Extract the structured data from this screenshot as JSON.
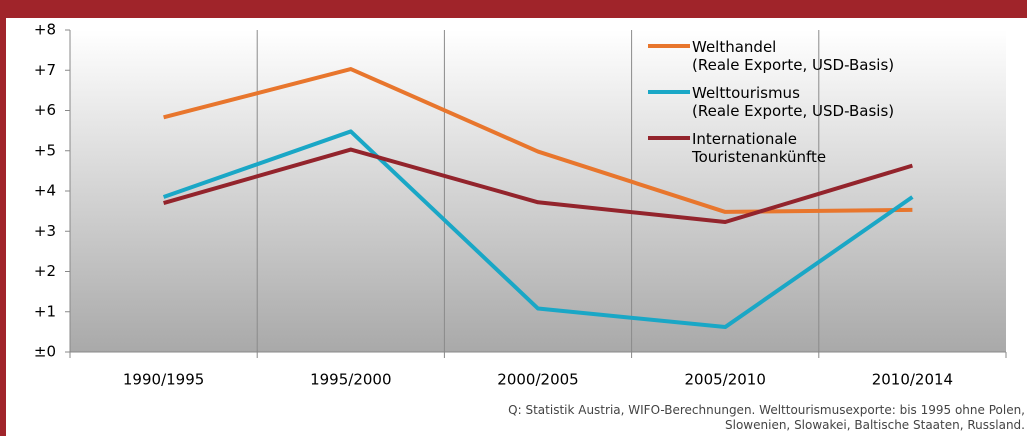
{
  "chart_data": {
    "type": "line",
    "categories": [
      "1990/1995",
      "1995/2000",
      "2000/2005",
      "2005/2010",
      "2010/2014"
    ],
    "series": [
      {
        "name": "Welthandel\n(Reale Exporte, USD-Basis)",
        "color": "#e8762d",
        "values": [
          5.83,
          7.03,
          4.98,
          3.48,
          3.53
        ]
      },
      {
        "name": "Welttourismus\n(Reale Exporte, USD-Basis)",
        "color": "#1aa7c6",
        "values": [
          3.85,
          5.48,
          1.08,
          0.62,
          3.85
        ]
      },
      {
        "name": "Internationale\nTouristenankünfte",
        "color": "#93242c",
        "values": [
          3.7,
          5.03,
          3.72,
          3.23,
          4.63
        ]
      }
    ],
    "ylim": [
      0,
      8
    ],
    "yticks": [
      {
        "value": 0,
        "label": "±0"
      },
      {
        "value": 1,
        "label": "+1"
      },
      {
        "value": 2,
        "label": "+2"
      },
      {
        "value": 3,
        "label": "+3"
      },
      {
        "value": 4,
        "label": "+4"
      },
      {
        "value": 5,
        "label": "+5"
      },
      {
        "value": 6,
        "label": "+6"
      },
      {
        "value": 7,
        "label": "+7"
      },
      {
        "value": 8,
        "label": "+8"
      }
    ],
    "grid": true,
    "source": "Q: Statistik Austria, WIFO-Berechnungen. Welttourismusexporte: bis 1995 ohne Polen,\nSlowenien, Slowakei, Baltische Staaten, Russland."
  }
}
